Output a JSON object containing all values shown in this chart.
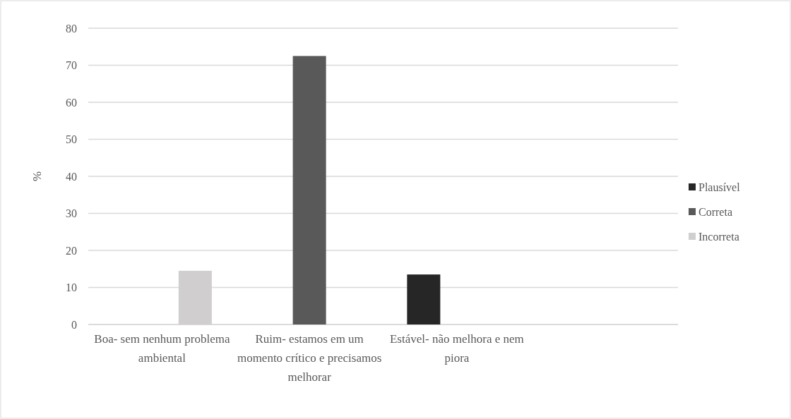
{
  "chart_data": {
    "type": "bar",
    "ylabel": "%",
    "categories": [
      "Boa- sem nenhum problema ambiental",
      "Ruim- estamos em um momento crítico e precisamos melhorar",
      "Estável- não melhora e nem piora",
      null
    ],
    "series": [
      {
        "name": "Plausível",
        "color": "#262626",
        "values": [
          null,
          null,
          13.5,
          null
        ]
      },
      {
        "name": "Correta",
        "color": "#595959",
        "values": [
          null,
          72.5,
          null,
          null
        ]
      },
      {
        "name": "Incorreta",
        "color": "#d0cece",
        "values": [
          14.5,
          null,
          null,
          null
        ]
      }
    ],
    "ylim": [
      0,
      80
    ],
    "yticks": [
      0,
      10,
      20,
      30,
      40,
      50,
      60,
      70,
      80
    ],
    "grid": "y",
    "legend": "right"
  }
}
